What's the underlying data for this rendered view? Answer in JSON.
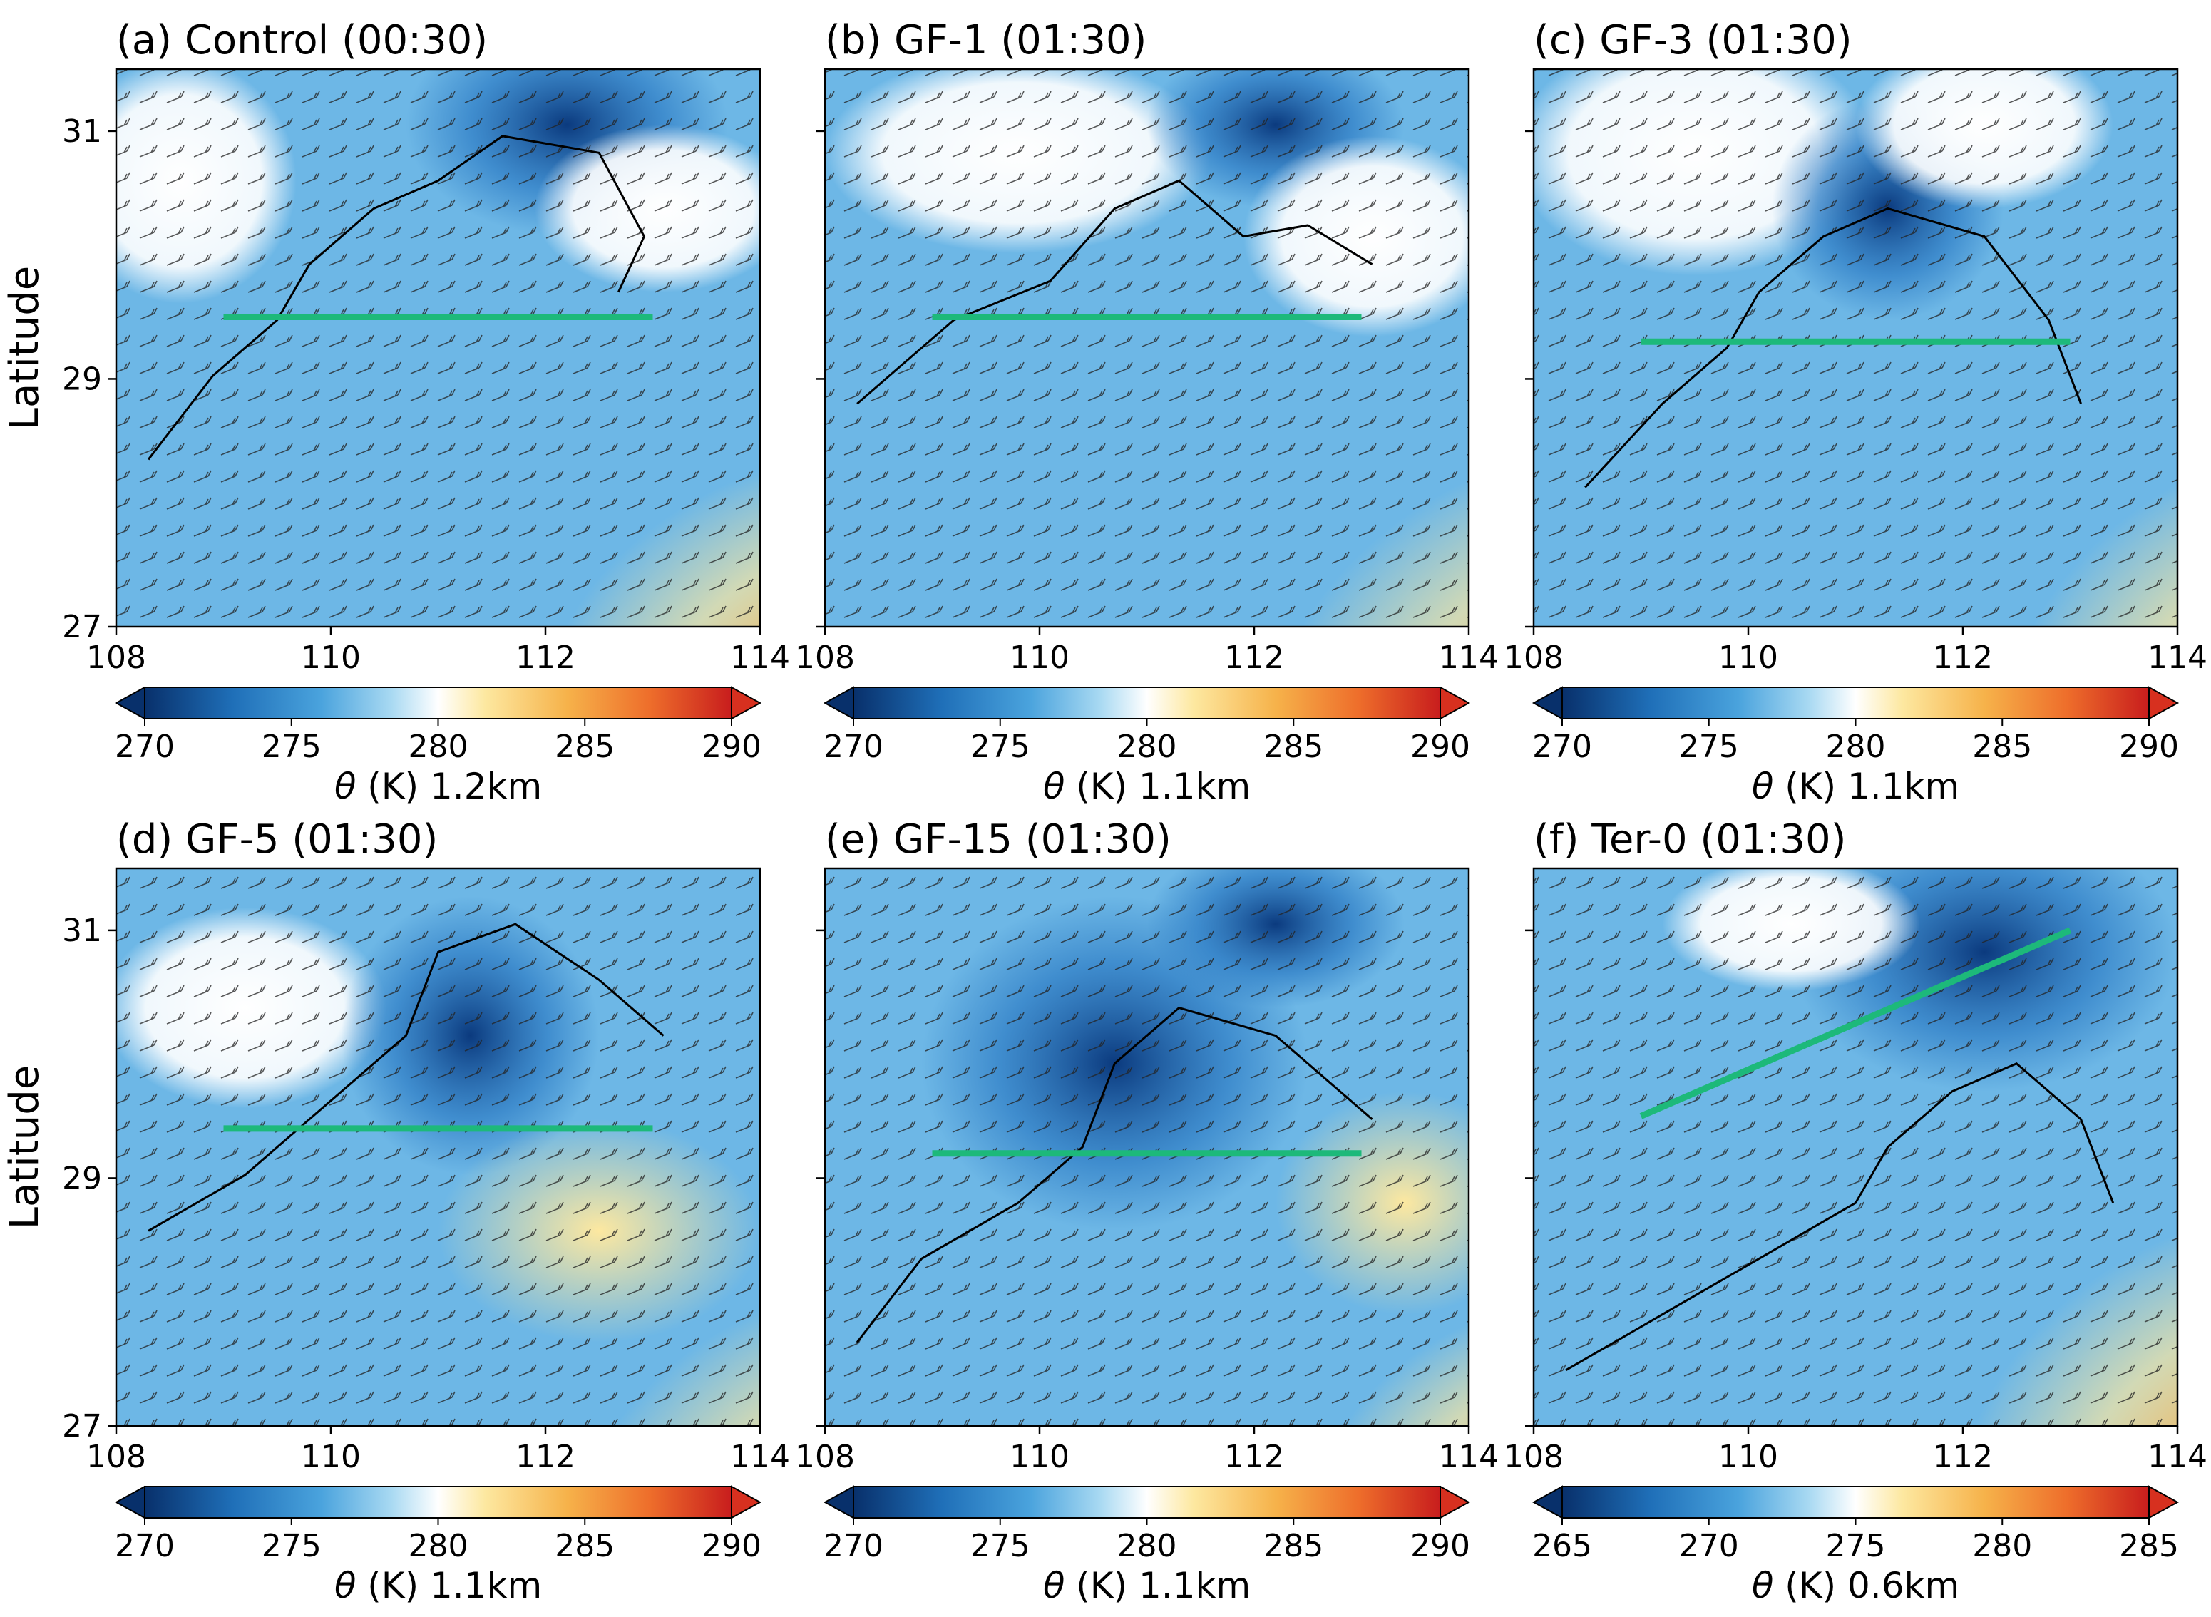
{
  "figure": {
    "ylabel": "Latitude",
    "x_ticks": [
      "108",
      "110",
      "112",
      "114"
    ],
    "y_ticks": [
      "27",
      "29",
      "31"
    ],
    "colors": {
      "deep_blue": "#08306b",
      "mid_blue": "#2c7bc4",
      "light_blue": "#9fd3ef",
      "white": "#ffffff",
      "yellow": "#fde8a0",
      "orange": "#f4a23a",
      "red": "#d7301f",
      "transect": "#1db97a",
      "contour": "#000000"
    }
  },
  "panels": [
    {
      "title": "(a) Control (00:30)",
      "colorbar_ticks": [
        "270",
        "275",
        "280",
        "285",
        "290"
      ],
      "colorbar_label_sym": "θ",
      "colorbar_label_rest": " (K) 1.2km",
      "transect": {
        "lon": [
          109.0,
          113.0
        ],
        "lat": [
          29.5,
          29.5
        ]
      }
    },
    {
      "title": "(b) GF-1 (01:30)",
      "colorbar_ticks": [
        "270",
        "275",
        "280",
        "285",
        "290"
      ],
      "colorbar_label_sym": "θ",
      "colorbar_label_rest": " (K) 1.1km",
      "transect": {
        "lon": [
          109.0,
          113.0
        ],
        "lat": [
          29.5,
          29.5
        ]
      }
    },
    {
      "title": "(c) GF-3 (01:30)",
      "colorbar_ticks": [
        "270",
        "275",
        "280",
        "285",
        "290"
      ],
      "colorbar_label_sym": "θ",
      "colorbar_label_rest": " (K) 1.1km",
      "transect": {
        "lon": [
          109.0,
          113.0
        ],
        "lat": [
          29.3,
          29.3
        ]
      }
    },
    {
      "title": "(d) GF-5 (01:30)",
      "colorbar_ticks": [
        "270",
        "275",
        "280",
        "285",
        "290"
      ],
      "colorbar_label_sym": "θ",
      "colorbar_label_rest": " (K) 1.1km",
      "transect": {
        "lon": [
          109.0,
          113.0
        ],
        "lat": [
          29.4,
          29.4
        ]
      }
    },
    {
      "title": "(e) GF-15 (01:30)",
      "colorbar_ticks": [
        "270",
        "275",
        "280",
        "285",
        "290"
      ],
      "colorbar_label_sym": "θ",
      "colorbar_label_rest": " (K) 1.1km",
      "transect": {
        "lon": [
          109.0,
          113.0
        ],
        "lat": [
          29.2,
          29.2
        ]
      }
    },
    {
      "title": "(f) Ter-0 (01:30)",
      "colorbar_ticks": [
        "265",
        "270",
        "275",
        "280",
        "285"
      ],
      "colorbar_label_sym": "θ",
      "colorbar_label_rest": " (K) 0.6km",
      "transect": {
        "lon": [
          109.0,
          113.0
        ],
        "lat": [
          29.5,
          31.0
        ]
      }
    }
  ],
  "chart_data": [
    {
      "type": "heatmap",
      "title": "(a) Control (00:30)",
      "xlim": [
        108,
        114
      ],
      "ylim": [
        27,
        31.5
      ],
      "ylabel": "Latitude",
      "colorbar_range": [
        270,
        290
      ],
      "colorbar_label": "θ (K) 1.2km",
      "transect": {
        "lon": [
          109.0,
          113.0
        ],
        "lat": [
          29.5,
          29.5
        ]
      }
    },
    {
      "type": "heatmap",
      "title": "(b) GF-1 (01:30)",
      "xlim": [
        108,
        114
      ],
      "ylim": [
        27,
        31.5
      ],
      "colorbar_range": [
        270,
        290
      ],
      "colorbar_label": "θ (K) 1.1km",
      "transect": {
        "lon": [
          109.0,
          113.0
        ],
        "lat": [
          29.5,
          29.5
        ]
      }
    },
    {
      "type": "heatmap",
      "title": "(c) GF-3 (01:30)",
      "xlim": [
        108,
        114
      ],
      "ylim": [
        27,
        31.5
      ],
      "colorbar_range": [
        270,
        290
      ],
      "colorbar_label": "θ (K) 1.1km",
      "transect": {
        "lon": [
          109.0,
          113.0
        ],
        "lat": [
          29.3,
          29.3
        ]
      }
    },
    {
      "type": "heatmap",
      "title": "(d) GF-5 (01:30)",
      "xlim": [
        108,
        114
      ],
      "ylim": [
        27,
        31.5
      ],
      "ylabel": "Latitude",
      "colorbar_range": [
        270,
        290
      ],
      "colorbar_label": "θ (K) 1.1km",
      "transect": {
        "lon": [
          109.0,
          113.0
        ],
        "lat": [
          29.4,
          29.4
        ]
      }
    },
    {
      "type": "heatmap",
      "title": "(e) GF-15 (01:30)",
      "xlim": [
        108,
        114
      ],
      "ylim": [
        27,
        31.5
      ],
      "colorbar_range": [
        270,
        290
      ],
      "colorbar_label": "θ (K) 1.1km",
      "transect": {
        "lon": [
          109.0,
          113.0
        ],
        "lat": [
          29.2,
          29.2
        ]
      }
    },
    {
      "type": "heatmap",
      "title": "(f) Ter-0 (01:30)",
      "xlim": [
        108,
        114
      ],
      "ylim": [
        27,
        31.5
      ],
      "colorbar_range": [
        265,
        285
      ],
      "colorbar_label": "θ (K) 0.6km",
      "transect": {
        "lon": [
          109.0,
          113.0
        ],
        "lat": [
          29.5,
          31.0
        ]
      }
    }
  ]
}
